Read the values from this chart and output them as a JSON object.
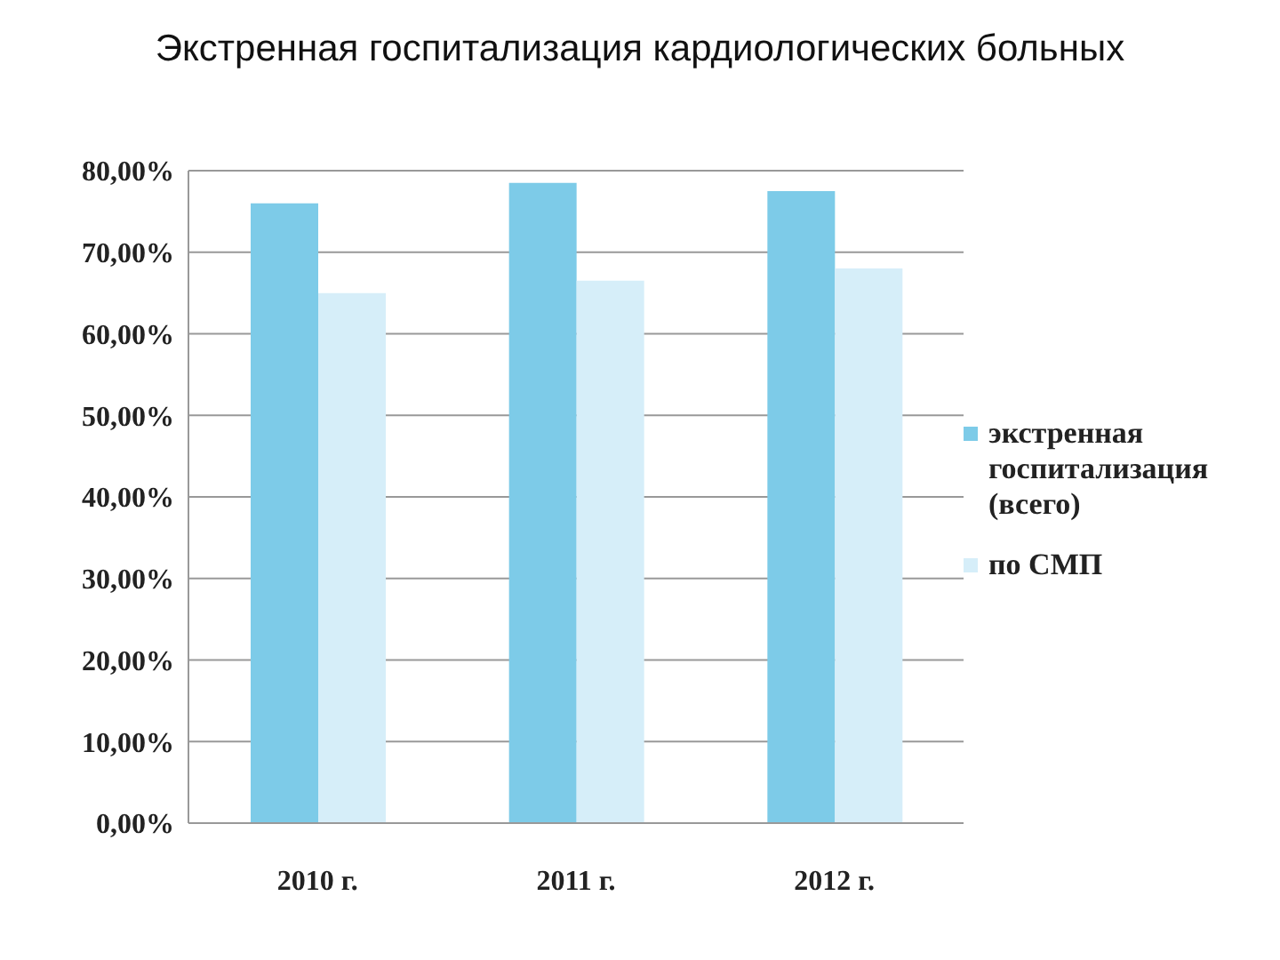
{
  "chart_data": {
    "type": "bar",
    "title": "Экстренная госпитализация кардиологических больных",
    "categories": [
      "2010 г.",
      "2011 г.",
      "2012 г."
    ],
    "series": [
      {
        "name": "экстренная госпитализация (всего)",
        "color": "#7dcbe8",
        "values": [
          76,
          78.5,
          77.5
        ]
      },
      {
        "name": "по СМП",
        "color": "#d6eef9",
        "values": [
          65,
          66.5,
          68
        ]
      }
    ],
    "ylim": [
      0,
      80
    ],
    "yticks": [
      {
        "value": 0,
        "label": "0,00%"
      },
      {
        "value": 10,
        "label": "10,00%"
      },
      {
        "value": 20,
        "label": "20,00%"
      },
      {
        "value": 30,
        "label": "30,00%"
      },
      {
        "value": 40,
        "label": "40,00%"
      },
      {
        "value": 50,
        "label": "50,00%"
      },
      {
        "value": 60,
        "label": "60,00%"
      },
      {
        "value": 70,
        "label": "70,00%"
      },
      {
        "value": 80,
        "label": "80,00%"
      }
    ],
    "grid": "y",
    "legend": "right"
  }
}
